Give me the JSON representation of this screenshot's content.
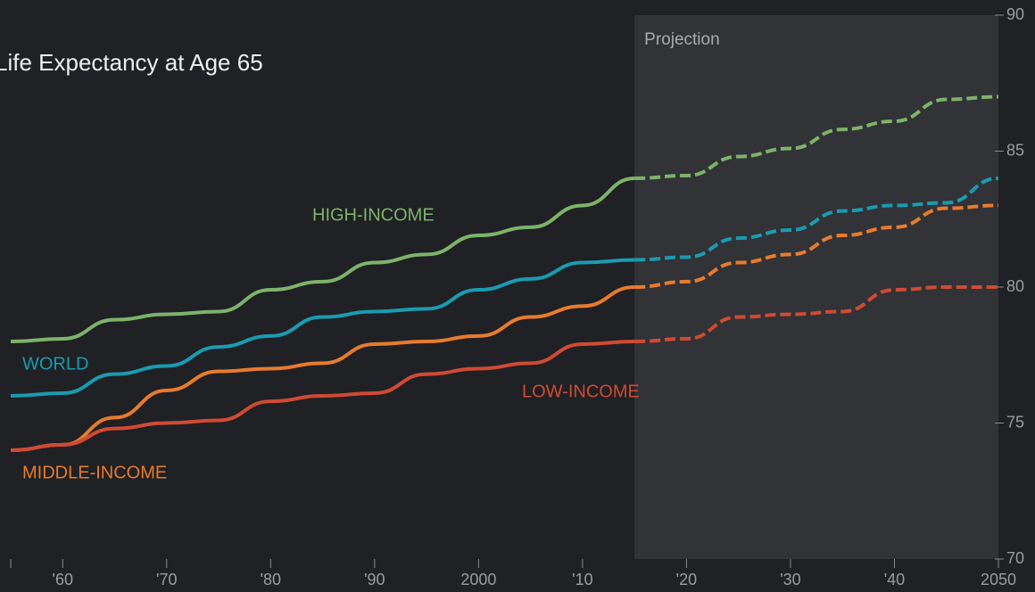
{
  "chart_data": {
    "type": "line",
    "title": "Life Expectancy at Age 65",
    "annotation": {
      "text": "Projection",
      "x_start": 2015
    },
    "x": [
      1955,
      1960,
      1965,
      1970,
      1975,
      1980,
      1985,
      1990,
      1995,
      2000,
      2005,
      2010,
      2015,
      2020,
      2025,
      2030,
      2035,
      2040,
      2045,
      2050
    ],
    "series": [
      {
        "name": "HIGH-INCOME",
        "color": "#7db36a",
        "values": [
          78,
          78.1,
          78.8,
          79,
          79.1,
          79.9,
          80.2,
          80.9,
          81.2,
          81.9,
          82.2,
          83,
          84,
          84.1,
          84.8,
          85.1,
          85.8,
          86.1,
          86.9,
          87
        ]
      },
      {
        "name": "WORLD",
        "color": "#1a9bb0",
        "values": [
          76,
          76.1,
          76.8,
          77.1,
          77.8,
          78.2,
          78.9,
          79.1,
          79.2,
          79.9,
          80.3,
          80.9,
          81,
          81.1,
          81.8,
          82.1,
          82.8,
          83,
          83.1,
          84
        ]
      },
      {
        "name": "MIDDLE-INCOME",
        "color": "#e87b2e",
        "values": [
          74,
          74.2,
          75.2,
          76.2,
          76.9,
          77,
          77.2,
          77.9,
          78,
          78.2,
          78.9,
          79.3,
          80,
          80.2,
          80.9,
          81.2,
          81.9,
          82.2,
          82.9,
          83
        ]
      },
      {
        "name": "LOW-INCOME",
        "color": "#d04a33",
        "values": [
          74,
          74.2,
          74.8,
          75,
          75.1,
          75.8,
          76,
          76.1,
          76.8,
          77,
          77.2,
          77.9,
          78,
          78.1,
          78.9,
          79,
          79.1,
          79.9,
          80,
          80
        ]
      }
    ],
    "xlim": [
      1955,
      2050
    ],
    "xticks": [
      {
        "value": 1960,
        "label": "'60"
      },
      {
        "value": 1970,
        "label": "'70"
      },
      {
        "value": 1980,
        "label": "'80"
      },
      {
        "value": 1990,
        "label": "'90"
      },
      2000,
      {
        "value": 2010,
        "label": "'10"
      },
      {
        "value": 2020,
        "label": "'20"
      },
      {
        "value": 2030,
        "label": "'30"
      },
      {
        "value": 2040,
        "label": "'40"
      },
      2050
    ],
    "ylim": [
      70,
      90
    ],
    "yticks": [
      70,
      75,
      80,
      85,
      90
    ]
  }
}
